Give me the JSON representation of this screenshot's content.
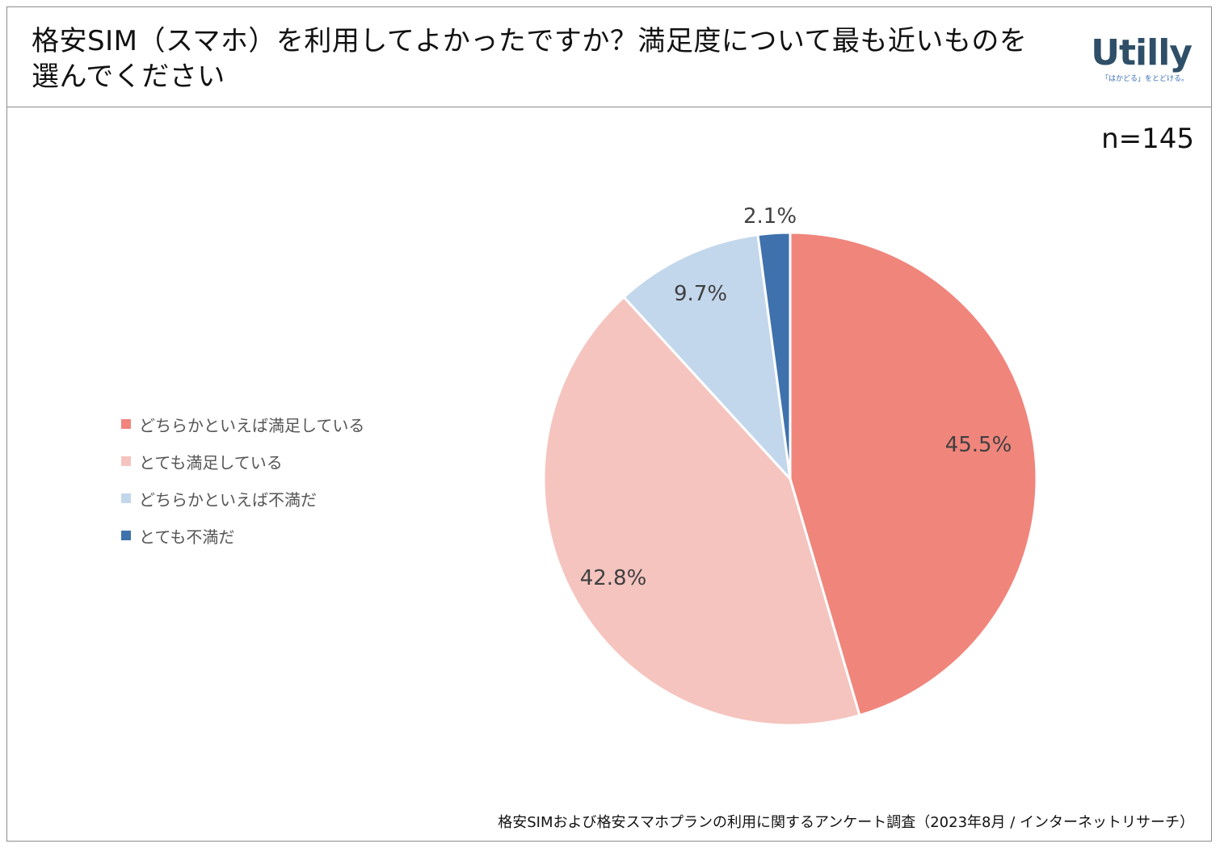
{
  "header": {
    "title": "格安SIM（スマホ）を利用してよかったですか？満足度について最も近いものを選んでください"
  },
  "logo": {
    "word": "Utilly",
    "tagline": "「はかどる」をとどける。"
  },
  "sample_size": "n=145",
  "footer": {
    "source": "格安SIMおよび格安スマホプランの利用に関するアンケート調査（2023年8月 / インターネットリサーチ）"
  },
  "chart_data": {
    "type": "pie",
    "title": "格安SIM（スマホ）を利用してよかったですか？満足度について最も近いものを選んでください",
    "categories": [
      "どちらかといえば満足している",
      "とても満足している",
      "どちらかといえば不満だ",
      "とても不満だ"
    ],
    "values": [
      45.5,
      42.8,
      9.7,
      2.1
    ],
    "labels": [
      "45.5%",
      "42.8%",
      "9.7%",
      "2.1%"
    ],
    "colors": [
      "#f0857c",
      "#f5c4bf",
      "#c3d7ec",
      "#3f72ad"
    ],
    "legend_position": "left",
    "start": "12 o'clock, clockwise"
  }
}
